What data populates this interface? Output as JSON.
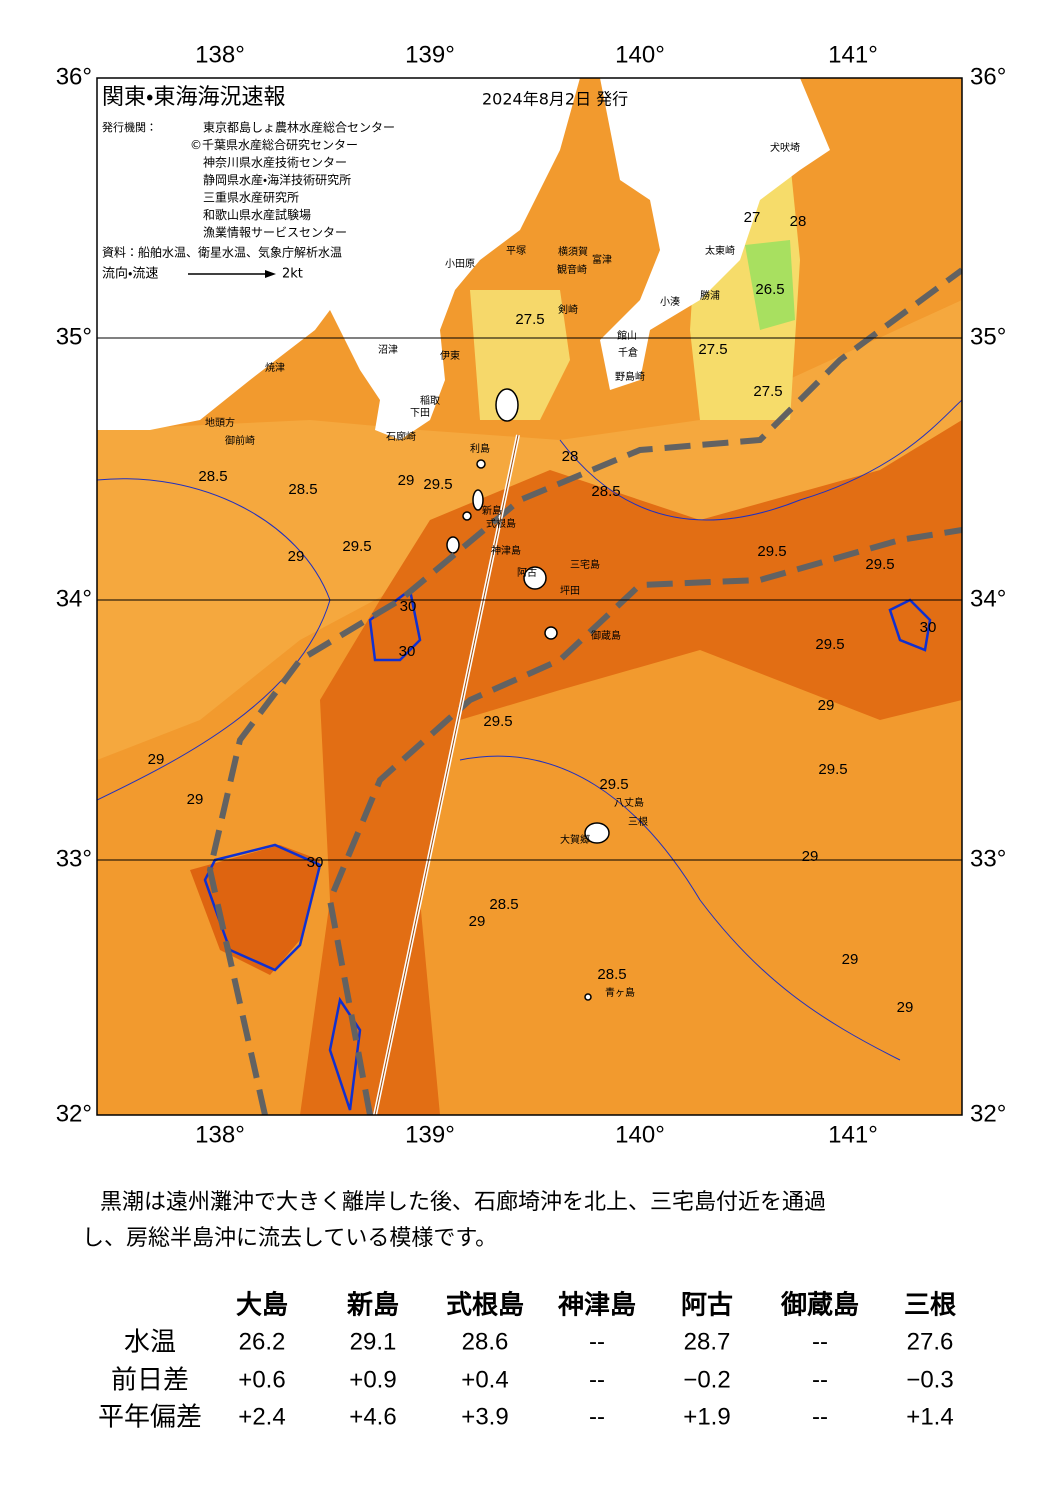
{
  "map": {
    "title": "関東・東海海況速報",
    "date": "2024年8月2日 発行",
    "issuer_label": "発行機関：",
    "issuers": [
      "東京都島しょ農林水産総合センター",
      "©千葉県水産総合研究センター",
      "神奈川県水産技術センター",
      "静岡県水産・海洋技術研究所",
      "三重県水産研究所",
      "和歌山県水産試験場",
      "漁業情報サービスセンター"
    ],
    "source": "資料：船舶水温、衛星水温、気象庁解析水温",
    "flow_legend": "流向・流速",
    "flow_scale": "2kt",
    "lon_labels": [
      "138°",
      "139°",
      "140°",
      "141°"
    ],
    "lat_labels": [
      "36°",
      "35°",
      "34°",
      "33°",
      "32°"
    ],
    "place_names": [
      "犬吠埼",
      "太東崎",
      "勝浦",
      "小湊",
      "館山",
      "千倉",
      "野島崎",
      "富津",
      "横須賀",
      "観音崎",
      "剣崎",
      "平塚",
      "小田原",
      "伊東",
      "稲取",
      "下田",
      "石廊崎",
      "沼津",
      "焼津",
      "御前崎",
      "地頭方",
      "利島",
      "新島",
      "式根島",
      "神津島",
      "三宅島",
      "阿古",
      "坪田",
      "御蔵島",
      "八丈島",
      "三根",
      "大賀郷",
      "青ヶ島"
    ],
    "contour_labels": [
      "27",
      "28",
      "26.5",
      "27.5",
      "27.5",
      "27.5",
      "28",
      "28.5",
      "28.5",
      "28.5",
      "29",
      "29",
      "29.5",
      "29.5",
      "29.5",
      "29.5",
      "29.5",
      "30",
      "30",
      "30",
      "30",
      "29.5",
      "29",
      "29",
      "28.5",
      "28.5",
      "29",
      "29",
      "29.5",
      "29.5",
      "29",
      "29",
      "29"
    ]
  },
  "description": [
    "黒潮は遠州灘沖で大きく離岸した後、石廊埼沖を北上、三宅島付近を通過",
    "し、房総半島沖に流去している模様です。"
  ],
  "table": {
    "columns": [
      "大島",
      "新島",
      "式根島",
      "神津島",
      "阿古",
      "御蔵島",
      "三根"
    ],
    "rows": [
      {
        "label": "水温",
        "cells": [
          "26.2",
          "29.1",
          "28.6",
          "--",
          "28.7",
          "--",
          "27.6"
        ]
      },
      {
        "label": "前日差",
        "cells": [
          "+0.6",
          "+0.9",
          "+0.4",
          "--",
          "−0.2",
          "--",
          "−0.3"
        ]
      },
      {
        "label": "平年偏差",
        "cells": [
          "+2.4",
          "+4.6",
          "+3.9",
          "--",
          "+1.9",
          "--",
          "+1.4"
        ]
      }
    ]
  }
}
